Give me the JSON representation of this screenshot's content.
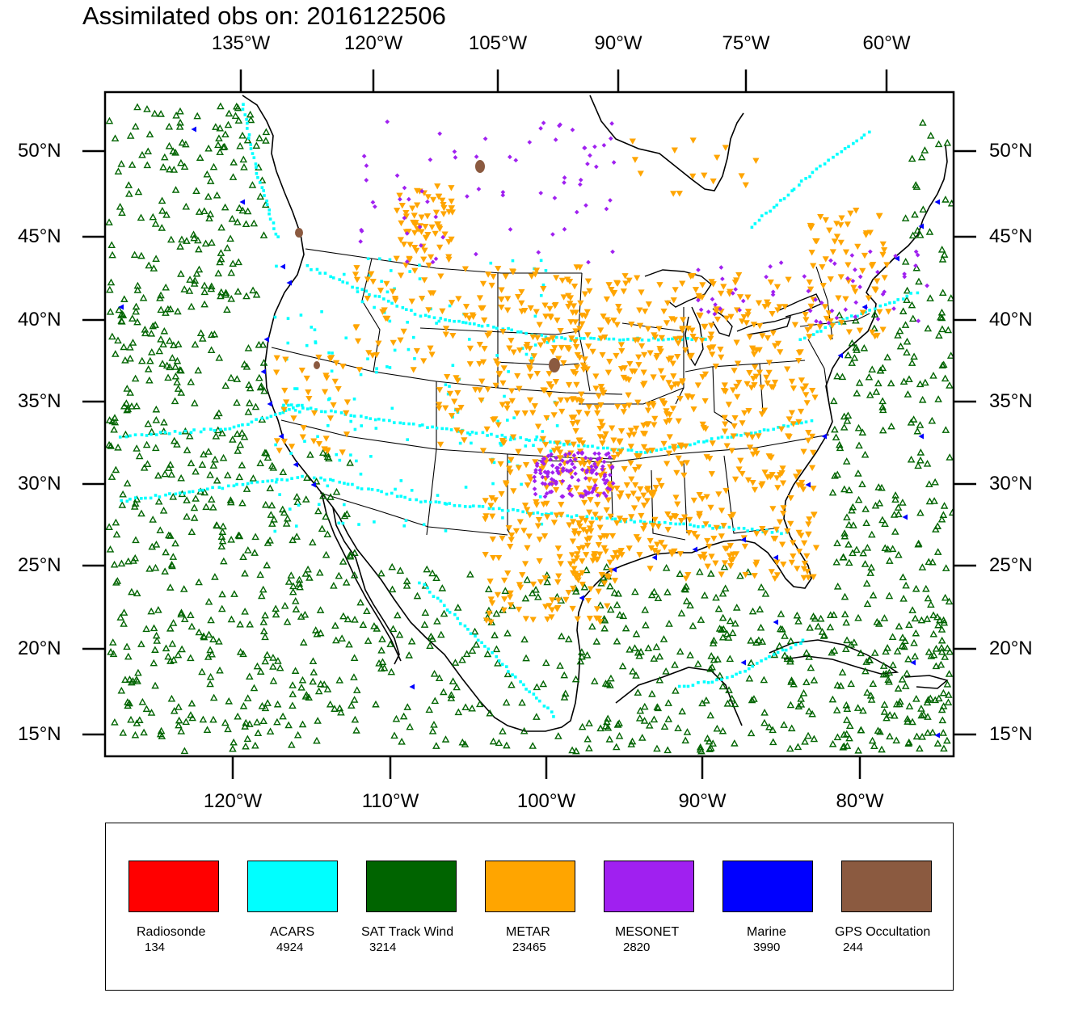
{
  "title": "Assimilated obs on: 2016122506",
  "axes": {
    "top_labels": [
      "135°W",
      "120°W",
      "105°W",
      "90°W",
      "75°W",
      "60°W"
    ],
    "bottom_labels": [
      "120°W",
      "110°W",
      "100°W",
      "90°W",
      "80°W"
    ],
    "lat_labels": [
      "50°N",
      "45°N",
      "40°N",
      "35°N",
      "30°N",
      "25°N",
      "20°N",
      "15°N"
    ]
  },
  "legend": [
    {
      "name": "Radiosonde",
      "count": "134",
      "color": "#ff0000"
    },
    {
      "name": "ACARS",
      "count": "4924",
      "color": "#00ffff"
    },
    {
      "name": "SAT Track Wind",
      "count": "3214",
      "color": "#006400"
    },
    {
      "name": "METAR",
      "count": "23465",
      "color": "#ffa500"
    },
    {
      "name": "MESONET",
      "count": "2820",
      "color": "#a020f0"
    },
    {
      "name": "Marine",
      "count": "3990",
      "color": "#0000ff"
    },
    {
      "name": "GPS Occultation",
      "count": "244",
      "color": "#8b5a40"
    }
  ]
}
